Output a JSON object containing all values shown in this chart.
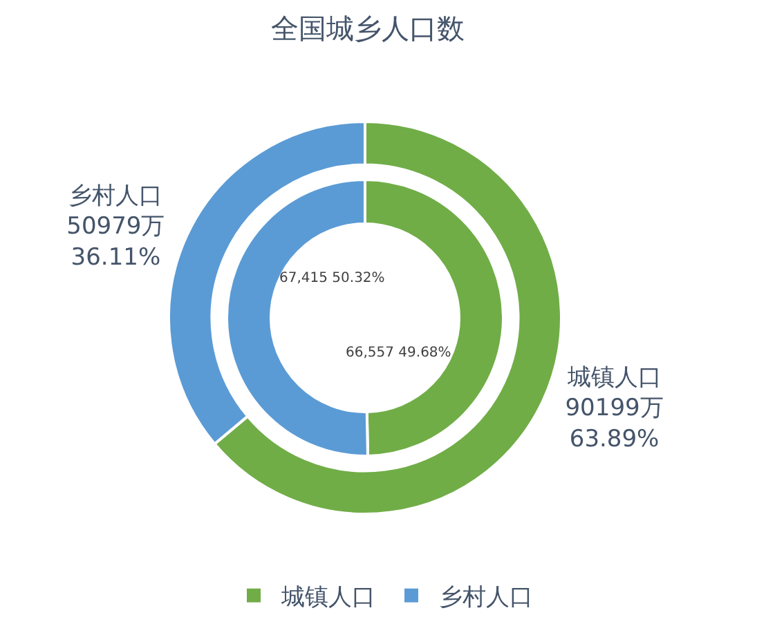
{
  "chart_data": {
    "type": "donut",
    "title": "全国城乡人口数",
    "categories": [
      "城镇人口",
      "乡村人口"
    ],
    "colors": [
      "#70ad47",
      "#5b9bd5"
    ],
    "legend": "bottom",
    "series": [
      {
        "values": [
          90199,
          50979
        ],
        "value_labels": [
          "城镇人口\n90199万\n63.89%",
          "乡村人口\n50979万\n36.11%"
        ]
      },
      {
        "values": [
          66557,
          67415
        ],
        "value_labels": [
          "66,557 49.68%",
          "67,415 50.32%"
        ]
      }
    ]
  }
}
